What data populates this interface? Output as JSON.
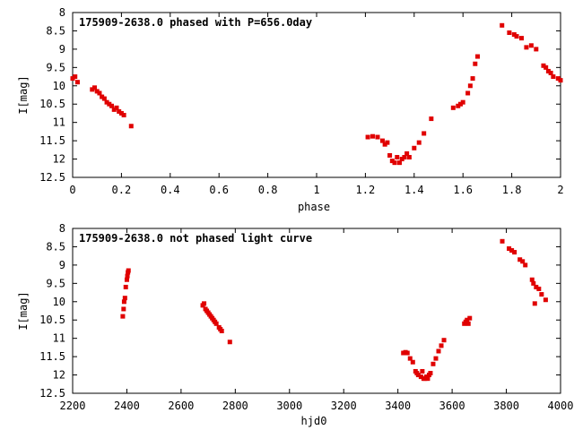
{
  "chart_data": [
    {
      "type": "scatter",
      "title": "175909-2638.0 phased with P=656.0day",
      "xlabel": "phase",
      "ylabel": "I[mag]",
      "xlim": [
        0,
        2
      ],
      "ylim": [
        12.5,
        8
      ],
      "y_inverted": true,
      "xticks": [
        "0",
        "0.2",
        "0.4",
        "0.6",
        "0.8",
        "1",
        "1.2",
        "1.4",
        "1.6",
        "1.8",
        "2"
      ],
      "yticks": [
        "8",
        "8.5",
        "9",
        "9.5",
        "10",
        "10.5",
        "11",
        "11.5",
        "12",
        "12.5"
      ],
      "marker_color": "#e00000",
      "series": [
        {
          "x": [
            0.0,
            0.01,
            0.02,
            0.08,
            0.09,
            0.1,
            0.11,
            0.12,
            0.13,
            0.14,
            0.15,
            0.16,
            0.17,
            0.18,
            0.19,
            0.2,
            0.21,
            0.24,
            1.21,
            1.23,
            1.25,
            1.27,
            1.28,
            1.29,
            1.3,
            1.31,
            1.32,
            1.33,
            1.34,
            1.35,
            1.36,
            1.37,
            1.38,
            1.4,
            1.42,
            1.44,
            1.47,
            1.56,
            1.58,
            1.59,
            1.6,
            1.62,
            1.63,
            1.64,
            1.65,
            1.66,
            1.76,
            1.79,
            1.81,
            1.82,
            1.84,
            1.86,
            1.88,
            1.9,
            1.93,
            1.94,
            1.95,
            1.96,
            1.97,
            1.99,
            2.0
          ],
          "y": [
            9.8,
            9.75,
            9.9,
            10.1,
            10.05,
            10.15,
            10.2,
            10.3,
            10.35,
            10.45,
            10.5,
            10.55,
            10.65,
            10.6,
            10.7,
            10.75,
            10.8,
            11.1,
            11.4,
            11.38,
            11.4,
            11.5,
            11.6,
            11.55,
            11.9,
            12.05,
            12.1,
            11.95,
            12.1,
            12.0,
            11.95,
            11.85,
            11.95,
            11.7,
            11.55,
            11.3,
            10.9,
            10.6,
            10.55,
            10.5,
            10.45,
            10.2,
            10.0,
            9.8,
            9.4,
            9.2,
            8.35,
            8.55,
            8.6,
            8.65,
            8.7,
            8.95,
            8.9,
            9.0,
            9.45,
            9.5,
            9.6,
            9.65,
            9.75,
            9.8,
            9.85
          ]
        }
      ]
    },
    {
      "type": "scatter",
      "title": "175909-2638.0 not phased light curve",
      "xlabel": "hjd0",
      "ylabel": "I[mag]",
      "xlim": [
        2200,
        4000
      ],
      "ylim": [
        12.5,
        8
      ],
      "y_inverted": true,
      "xticks": [
        "2200",
        "2400",
        "2600",
        "2800",
        "3000",
        "3200",
        "3400",
        "3600",
        "3800",
        "4000"
      ],
      "yticks": [
        "8",
        "8.5",
        "9",
        "9.5",
        "10",
        "10.5",
        "11",
        "11.5",
        "12",
        "12.5"
      ],
      "marker_color": "#e00000",
      "series": [
        {
          "x": [
            2385,
            2388,
            2390,
            2393,
            2396,
            2400,
            2402,
            2404,
            2406,
            2680,
            2685,
            2690,
            2695,
            2700,
            2705,
            2710,
            2715,
            2720,
            2725,
            2730,
            2740,
            2745,
            2750,
            2780,
            3420,
            3428,
            3435,
            3445,
            3455,
            3465,
            3470,
            3475,
            3485,
            3490,
            3495,
            3500,
            3505,
            3510,
            3515,
            3520,
            3530,
            3540,
            3550,
            3560,
            3570,
            3645,
            3650,
            3655,
            3660,
            3665,
            3785,
            3810,
            3820,
            3830,
            3850,
            3860,
            3870,
            3895,
            3900,
            3905,
            3910,
            3920,
            3930,
            3945
          ],
          "y": [
            10.4,
            10.2,
            10.0,
            9.9,
            9.6,
            9.4,
            9.3,
            9.2,
            9.15,
            10.1,
            10.05,
            10.2,
            10.25,
            10.3,
            10.35,
            10.4,
            10.45,
            10.5,
            10.55,
            10.6,
            10.7,
            10.75,
            10.8,
            11.1,
            11.4,
            11.38,
            11.4,
            11.55,
            11.65,
            11.9,
            11.95,
            12.0,
            12.05,
            11.9,
            12.1,
            12.1,
            12.05,
            12.1,
            12.0,
            11.95,
            11.7,
            11.55,
            11.35,
            11.2,
            11.05,
            10.6,
            10.55,
            10.5,
            10.6,
            10.45,
            8.35,
            8.55,
            8.6,
            8.65,
            8.85,
            8.9,
            9.0,
            9.4,
            9.5,
            10.05,
            9.6,
            9.65,
            9.8,
            9.95
          ]
        }
      ]
    }
  ]
}
